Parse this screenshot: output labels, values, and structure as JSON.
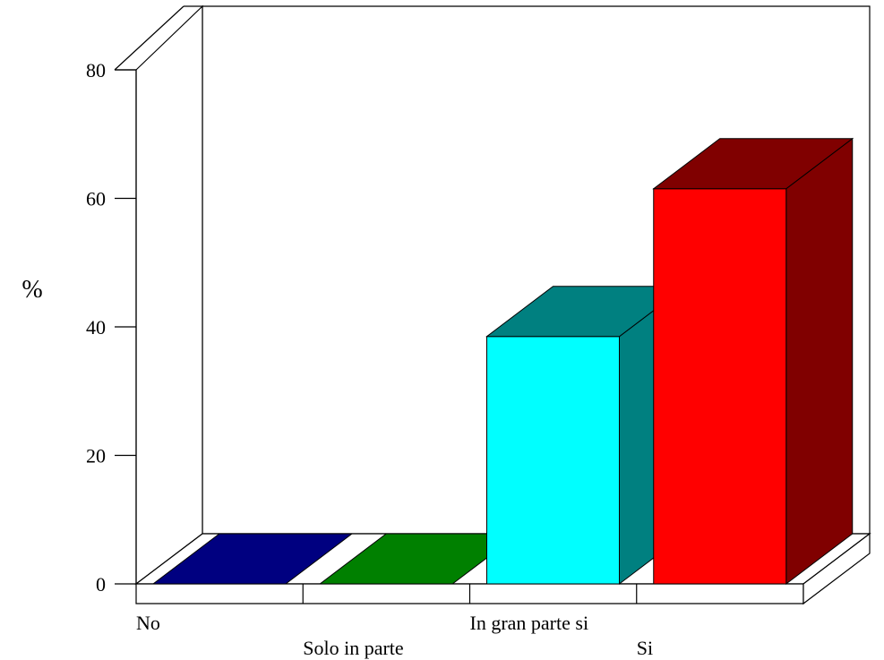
{
  "chart_data": {
    "type": "bar",
    "title": "",
    "xlabel": "",
    "ylabel": "%",
    "categories": [
      "No",
      "Solo in parte",
      "In gran parte si",
      "Si"
    ],
    "values": [
      0,
      0,
      38.5,
      61.5
    ],
    "ylim": [
      0,
      80
    ],
    "yticks": [
      0,
      20,
      40,
      60,
      80
    ],
    "grid": false,
    "legend": "none",
    "colors": {
      "front": [
        "#000080",
        "#008000",
        "#00ffff",
        "#ff0000"
      ],
      "side": [
        "#000080",
        "#008000",
        "#008080",
        "#800000"
      ],
      "top": [
        "#000080",
        "#008000",
        "#008080",
        "#800000"
      ]
    }
  }
}
